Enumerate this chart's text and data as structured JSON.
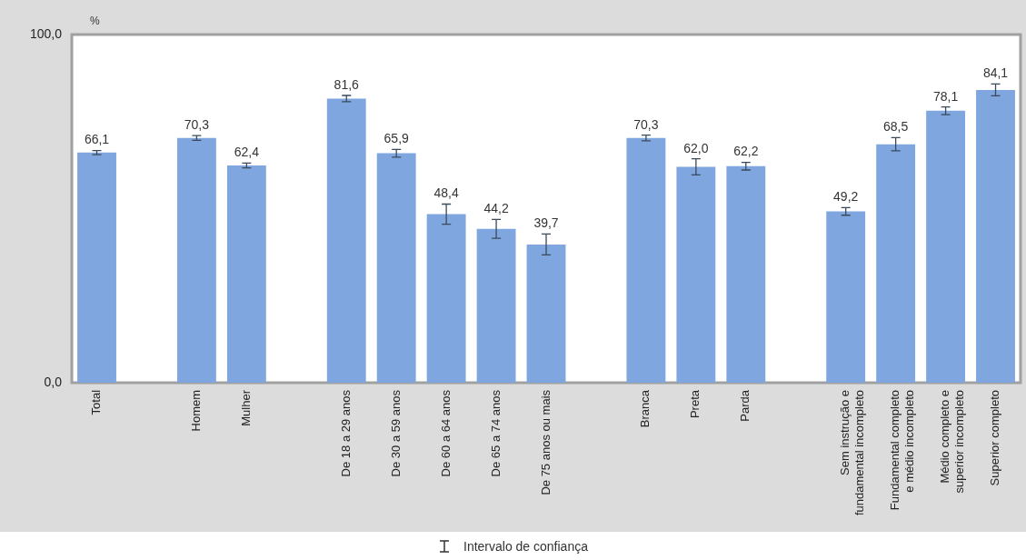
{
  "chart_data": {
    "type": "bar",
    "ylabel": "%",
    "categories": [
      "Total",
      null,
      "Homem",
      "Mulher",
      null,
      "De 18 a 29 anos",
      "De 30 a 59 anos",
      "De 60 a 64 anos",
      "De 65 a 74 anos",
      "De 75 anos ou mais",
      null,
      "Branca",
      "Preta",
      "Parda",
      null,
      "Sem instrução e fundamental incompleto",
      "Fundamental completo e médio incompleto",
      "Médio completo e superior incompleto",
      "Superior completo"
    ],
    "values": [
      66.1,
      null,
      70.3,
      62.4,
      null,
      81.6,
      65.9,
      48.4,
      44.2,
      39.7,
      null,
      70.3,
      62.0,
      62.2,
      null,
      49.2,
      68.5,
      78.1,
      84.1
    ],
    "errors": [
      0.6,
      null,
      0.7,
      0.7,
      null,
      0.9,
      1.1,
      2.9,
      2.7,
      3.0,
      null,
      0.8,
      2.3,
      1.1,
      null,
      1.1,
      1.9,
      1.1,
      1.7
    ],
    "value_labels": [
      "66,1",
      null,
      "70,3",
      "62,4",
      null,
      "81,6",
      "65,9",
      "48,4",
      "44,2",
      "39,7",
      null,
      "70,3",
      "62,0",
      "62,2",
      null,
      "49,2",
      "68,5",
      "78,1",
      "84,1"
    ],
    "color": "#7fa6de",
    "ylim": [
      0,
      100
    ],
    "yticks": [
      {
        "value": 0,
        "label": "0,0"
      },
      {
        "value": 100,
        "label": "100,0"
      }
    ],
    "grid": false,
    "legend": false,
    "annotations": [
      "Intervalo de confiança"
    ]
  }
}
